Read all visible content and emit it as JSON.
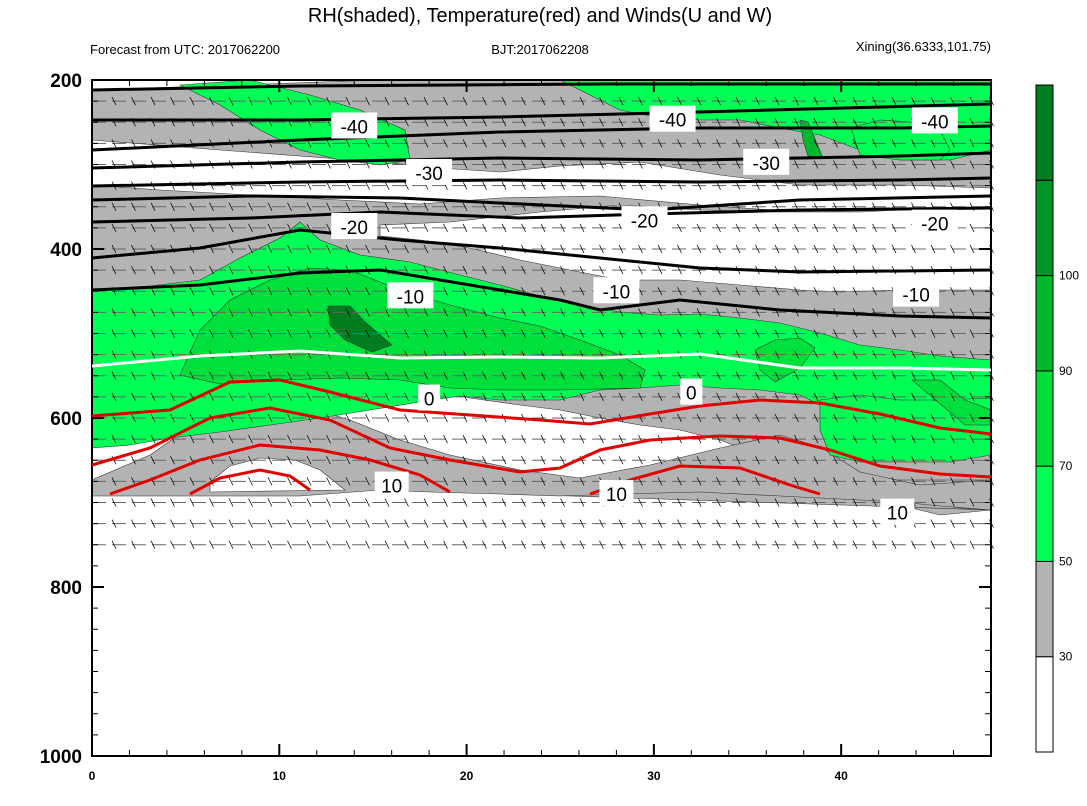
{
  "header": {
    "title": "RH(shaded), Temperature(red) and Winds(U and W)",
    "forecast": "Forecast from UTC: 2017062200",
    "bjt": "BJT:2017062208",
    "station": "Xining(36.6333,101.75)"
  },
  "chart_data": {
    "type": "heatmap",
    "title": "RH(shaded), Temperature(red) and Winds(U and W)",
    "x": {
      "ticks": [
        0,
        10,
        20,
        30,
        40
      ],
      "range": [
        0,
        48
      ]
    },
    "y": {
      "ticks": [
        200,
        400,
        600,
        800,
        1000
      ],
      "range": [
        1000,
        200
      ],
      "direction": "inverted"
    },
    "rh_colorbar": {
      "levels": [
        30,
        50,
        70,
        90,
        100
      ],
      "colors": [
        "#ffffff",
        "#b3b3b3",
        "#00ff55",
        "#00dd3a",
        "#00b82e",
        "#009428",
        "#007d1e"
      ]
    },
    "contour_labels": [
      {
        "text": "-40",
        "x": 14,
        "p": 255,
        "color": "black"
      },
      {
        "text": "-40",
        "x": 31,
        "p": 247,
        "color": "black"
      },
      {
        "text": "-40",
        "x": 45,
        "p": 249,
        "color": "black"
      },
      {
        "text": "-30",
        "x": 18,
        "p": 310,
        "color": "black"
      },
      {
        "text": "-30",
        "x": 36,
        "p": 298,
        "color": "black"
      },
      {
        "text": "-20",
        "x": 14,
        "p": 374,
        "color": "black"
      },
      {
        "text": "-20",
        "x": 29.5,
        "p": 366,
        "color": "black"
      },
      {
        "text": "-20",
        "x": 45,
        "p": 370,
        "color": "black"
      },
      {
        "text": "-10",
        "x": 17,
        "p": 456,
        "color": "black"
      },
      {
        "text": "-10",
        "x": 28,
        "p": 450,
        "color": "black"
      },
      {
        "text": "-10",
        "x": 44,
        "p": 454,
        "color": "black"
      },
      {
        "text": "0",
        "x": 18,
        "p": 577,
        "color": "white"
      },
      {
        "text": "0",
        "x": 32,
        "p": 570,
        "color": "white"
      },
      {
        "text": "10",
        "x": 16,
        "p": 680,
        "color": "red"
      },
      {
        "text": "10",
        "x": 28,
        "p": 690,
        "color": "red"
      },
      {
        "text": "10",
        "x": 43,
        "p": 712,
        "color": "red"
      }
    ]
  }
}
